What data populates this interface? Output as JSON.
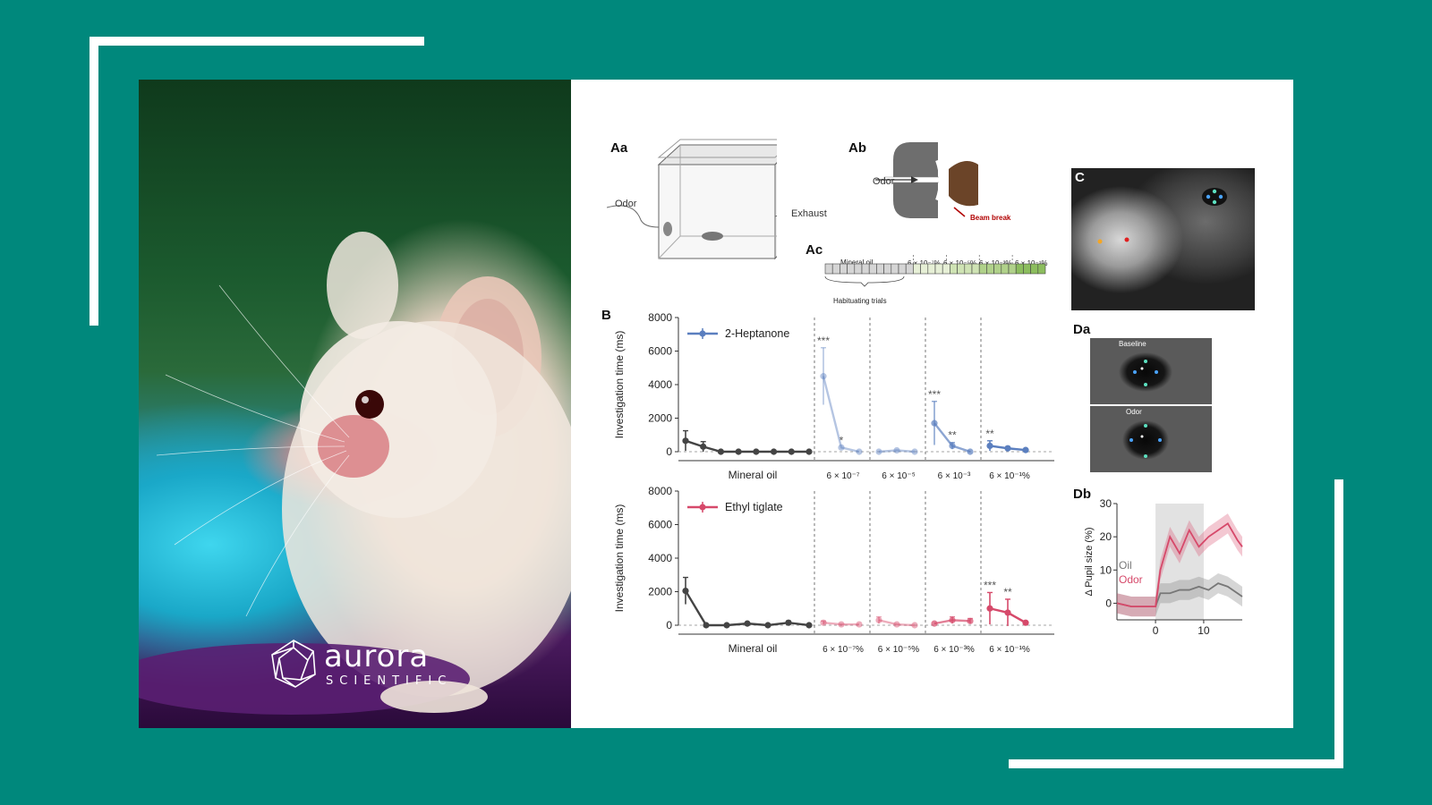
{
  "brand": {
    "name": "aurora",
    "subtitle": "SCIENTIFIC"
  },
  "figure": {
    "panel_labels": {
      "Aa": "Aa",
      "Ab": "Ab",
      "Ac": "Ac",
      "B": "B",
      "C": "C",
      "Da": "Da",
      "Db": "Db"
    },
    "aa": {
      "odor": "Odor",
      "exhaust": "Exhaust"
    },
    "ab": {
      "odor": "Odor",
      "beam": "Beam break"
    },
    "ac": {
      "mineral": "Mineral oil",
      "habituating": "Habituating trials",
      "c1": "6 × 10⁻⁷%",
      "c2": "6 × 10⁻⁵%",
      "c3": "6 × 10⁻³%",
      "c4": "6 × 10⁻¹%"
    },
    "da": {
      "baseline": "Baseline",
      "odor": "Odor"
    }
  },
  "chart_data": [
    {
      "type": "line",
      "ylabel": "Investigation time (ms)",
      "ylim": [
        0,
        8000
      ],
      "yticks": [
        "8000",
        "6000",
        "4000",
        "2000",
        "0"
      ],
      "series_name": "2-Heptanone",
      "color": "#5b7fbf",
      "groups": [
        {
          "label": "Mineral oil",
          "values": [
            650,
            300,
            0,
            0,
            0,
            0,
            0,
            0
          ],
          "err": [
            600,
            300,
            0,
            0,
            0,
            0,
            0,
            0
          ],
          "opacity": 1,
          "color": "#444444"
        },
        {
          "label": "6 × 10⁻⁷",
          "values": [
            4500,
            250,
            0
          ],
          "err": [
            1700,
            0,
            0
          ],
          "opacity": 0.45
        },
        {
          "label": "6 × 10⁻⁵",
          "values": [
            0,
            80,
            0
          ],
          "err": [
            0,
            0,
            0
          ],
          "opacity": 0.45
        },
        {
          "label": "6 × 10⁻³",
          "values": [
            1700,
            350,
            0
          ],
          "err": [
            1300,
            200,
            0
          ],
          "opacity": 0.7
        },
        {
          "label": "6 × 10⁻¹%",
          "values": [
            350,
            200,
            100
          ],
          "err": [
            300,
            100,
            0
          ],
          "opacity": 1
        }
      ],
      "annotations": [
        {
          "group": 1,
          "point": 0,
          "text": "***"
        },
        {
          "group": 1,
          "point": 1,
          "text": "*"
        },
        {
          "group": 3,
          "point": 0,
          "text": "***"
        },
        {
          "group": 3,
          "point": 1,
          "text": "**"
        },
        {
          "group": 4,
          "point": 0,
          "text": "**"
        }
      ]
    },
    {
      "type": "line",
      "ylabel": "Investigation time (ms)",
      "ylim": [
        0,
        8000
      ],
      "yticks": [
        "8000",
        "6000",
        "4000",
        "2000",
        "0"
      ],
      "series_name": "Ethyl tiglate",
      "color": "#d6496a",
      "groups": [
        {
          "label": "Mineral oil",
          "values": [
            2050,
            0,
            0,
            100,
            0,
            150,
            0
          ],
          "err": [
            800,
            0,
            0,
            0,
            0,
            100,
            0
          ],
          "opacity": 1,
          "color": "#444444"
        },
        {
          "label": "6 × 10⁻⁷%",
          "values": [
            150,
            50,
            50
          ],
          "err": [
            100,
            0,
            0
          ],
          "opacity": 0.45
        },
        {
          "label": "6 × 10⁻⁵%",
          "values": [
            300,
            50,
            0
          ],
          "err": [
            200,
            0,
            0
          ],
          "opacity": 0.45
        },
        {
          "label": "6 × 10⁻³%",
          "values": [
            100,
            300,
            250
          ],
          "err": [
            0,
            200,
            150
          ],
          "opacity": 0.7
        },
        {
          "label": "6 × 10⁻¹%",
          "values": [
            1000,
            750,
            150
          ],
          "err": [
            950,
            800,
            0
          ],
          "opacity": 1
        }
      ],
      "annotations": [
        {
          "group": 4,
          "point": 0,
          "text": "***"
        },
        {
          "group": 4,
          "point": 1,
          "text": "**"
        }
      ]
    },
    {
      "type": "line",
      "ylabel": "Δ Pupil size (%)",
      "ylim": [
        -5,
        30
      ],
      "yticks": [
        "30",
        "20",
        "10",
        "0"
      ],
      "xticks": [
        "0",
        "10"
      ],
      "xlim": [
        -8,
        18
      ],
      "shaded": [
        0,
        10
      ],
      "series": [
        {
          "name": "Oil",
          "color": "#777777",
          "x": [
            -8,
            -5,
            -2,
            0,
            1,
            3,
            5,
            7,
            9,
            11,
            13,
            15,
            17,
            18
          ],
          "y": [
            0,
            -1,
            -1,
            -1,
            3,
            3,
            4,
            4,
            5,
            4,
            6,
            5,
            3,
            2
          ]
        },
        {
          "name": "Odor",
          "color": "#d6496a",
          "x": [
            -8,
            -5,
            -2,
            0,
            1,
            3,
            5,
            7,
            9,
            11,
            13,
            15,
            17,
            18
          ],
          "y": [
            0,
            -1,
            -1,
            -1,
            10,
            20,
            15,
            22,
            17,
            20,
            22,
            24,
            19,
            17
          ]
        }
      ]
    }
  ]
}
